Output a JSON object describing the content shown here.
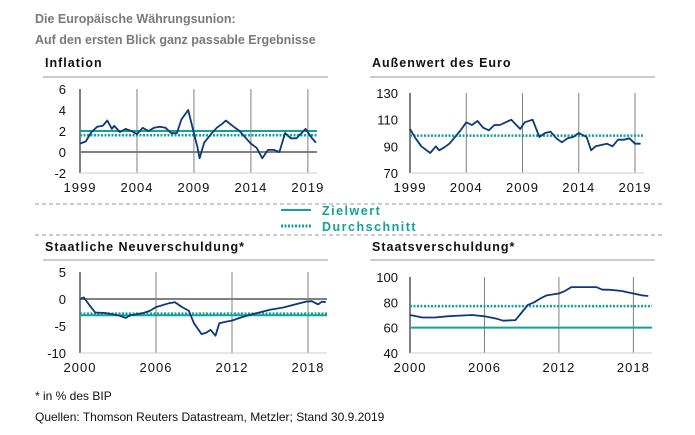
{
  "header": {
    "title": "Die Europäische Währungsunion:",
    "subtitle": "Auf den ersten Blick ganz passable Ergebnisse"
  },
  "legend": {
    "target_label": "Zielwert",
    "average_label": "Durchschnitt",
    "placement": "center"
  },
  "footer": {
    "note": "* in % des BIP",
    "source": "Quellen: Thomson Reuters Datastream, Metzler; Stand 30.9.2019"
  },
  "colors": {
    "series": "#0b3a78",
    "target": "#14a19a",
    "average": "#14a19a",
    "grid": "#808080"
  },
  "chart_data": [
    {
      "type": "line",
      "title": "Inflation",
      "ylim": [
        -2,
        6
      ],
      "yticks": [
        "6",
        "4",
        "2",
        "0",
        "-2"
      ],
      "ytick_values": [
        6,
        4,
        2,
        0,
        -2
      ],
      "xlim": [
        1999,
        2019.8
      ],
      "xticks": [
        "1999",
        "2004",
        "2009",
        "2014",
        "2019"
      ],
      "xtick_values": [
        1999,
        2004,
        2009,
        2014,
        2019
      ],
      "zero_line": 0,
      "target": 2,
      "average": 1.6,
      "series": [
        {
          "x": [
            1999,
            1999.5,
            2000,
            2000.5,
            2001,
            2001.4,
            2001.8,
            2002,
            2002.5,
            2003,
            2003.5,
            2004,
            2004.5,
            2005,
            2005.5,
            2006,
            2006.5,
            2007,
            2007.5,
            2007.9,
            2008.5,
            2008.9,
            2009.3,
            2009.5,
            2009.9,
            2010.5,
            2011,
            2011.5,
            2011.8,
            2012.5,
            2013,
            2013.5,
            2014,
            2014.5,
            2015,
            2015.5,
            2016,
            2016.5,
            2017,
            2017.5,
            2018,
            2018.8,
            2019.3,
            2019.7
          ],
          "y": [
            0.8,
            1.0,
            1.9,
            2.4,
            2.5,
            3.0,
            2.2,
            2.5,
            1.9,
            2.2,
            2.0,
            1.7,
            2.3,
            2.0,
            2.3,
            2.4,
            2.3,
            1.8,
            1.8,
            3.1,
            4.0,
            2.2,
            0.5,
            -0.6,
            0.9,
            1.7,
            2.3,
            2.7,
            3.0,
            2.4,
            2.0,
            1.4,
            0.8,
            0.4,
            -0.6,
            0.2,
            0.2,
            0.0,
            1.8,
            1.3,
            1.3,
            2.2,
            1.4,
            0.9
          ]
        }
      ]
    },
    {
      "type": "line",
      "title": "Außenwert des Euro",
      "ylim": [
        70,
        130
      ],
      "yticks": [
        "130",
        "110",
        "90",
        "70"
      ],
      "ytick_values": [
        130,
        110,
        90,
        70
      ],
      "xlim": [
        1999,
        2019.8
      ],
      "xticks": [
        "1999",
        "2004",
        "2009",
        "2014",
        "2019"
      ],
      "xtick_values": [
        1999,
        2004,
        2009,
        2014,
        2019
      ],
      "average": 98,
      "series": [
        {
          "x": [
            1999,
            1999.5,
            2000,
            2000.8,
            2001.3,
            2001.6,
            2002,
            2002.5,
            2003,
            2003.5,
            2004,
            2004.5,
            2005,
            2005.5,
            2006,
            2006.5,
            2007,
            2007.5,
            2008,
            2008.8,
            2009.2,
            2009.9,
            2010.5,
            2011,
            2011.5,
            2012,
            2012.5,
            2013,
            2013.5,
            2014,
            2014.7,
            2015.1,
            2015.5,
            2016,
            2016.5,
            2017,
            2017.5,
            2018,
            2018.5,
            2019,
            2019.5
          ],
          "y": [
            103,
            96,
            90,
            85,
            90,
            87,
            89,
            92,
            97,
            102,
            108,
            106,
            109,
            104,
            102,
            106,
            106,
            108,
            110,
            103,
            108,
            110,
            97,
            100,
            101,
            96,
            93,
            96,
            97,
            100,
            97,
            87,
            90,
            91,
            92,
            90,
            95,
            95,
            96,
            92,
            92
          ]
        }
      ]
    },
    {
      "type": "line",
      "title": "Staatliche Neuverschuldung*",
      "ylim": [
        -10,
        5
      ],
      "yticks": [
        "5",
        "0",
        "-5",
        "-10"
      ],
      "ytick_values": [
        5,
        0,
        -5,
        -10
      ],
      "xlim": [
        2000,
        2019.5
      ],
      "xticks": [
        "2000",
        "2006",
        "2012",
        "2018"
      ],
      "xtick_values": [
        2000,
        2006,
        2012,
        2018
      ],
      "zero_line": 0,
      "target": -3,
      "average": -2.7,
      "series": [
        {
          "x": [
            2000,
            2000.3,
            2000.7,
            2001.2,
            2002,
            2003,
            2003.6,
            2004,
            2005,
            2005.5,
            2006,
            2007,
            2007.5,
            2008,
            2008.6,
            2009,
            2009.6,
            2010,
            2010.3,
            2010.7,
            2011,
            2011.5,
            2012,
            2012.5,
            2013,
            2014,
            2015,
            2016,
            2017,
            2017.8,
            2018.3,
            2018.8,
            2019.1,
            2019.4
          ],
          "y": [
            0,
            0.3,
            -1,
            -2.5,
            -2.6,
            -3,
            -3.5,
            -3,
            -2.6,
            -2.2,
            -1.5,
            -0.8,
            -0.6,
            -1.4,
            -2.2,
            -4.5,
            -6.5,
            -6.2,
            -5.7,
            -6.8,
            -4.5,
            -4.2,
            -4.0,
            -3.6,
            -3.2,
            -2.6,
            -2.0,
            -1.6,
            -1.0,
            -0.5,
            -0.4,
            -1.0,
            -0.5,
            -0.6
          ]
        }
      ]
    },
    {
      "type": "line",
      "title": "Staatsverschuldung*",
      "ylim": [
        40,
        100
      ],
      "yticks": [
        "100",
        "80",
        "60",
        "40"
      ],
      "ytick_values": [
        100,
        80,
        60,
        40
      ],
      "xlim": [
        2000,
        2019.5
      ],
      "xticks": [
        "2000",
        "2006",
        "2012",
        "2018"
      ],
      "xtick_values": [
        2000,
        2006,
        2012,
        2018
      ],
      "target": 60,
      "average": 77,
      "series": [
        {
          "x": [
            2000,
            2001,
            2002,
            2003,
            2004,
            2005,
            2006,
            2007,
            2007.5,
            2008.5,
            2009,
            2009.5,
            2010,
            2010.5,
            2011,
            2012,
            2012.5,
            2013,
            2014,
            2015,
            2015.5,
            2016,
            2017,
            2018,
            2018.7,
            2019.2
          ],
          "y": [
            70,
            68,
            68,
            69,
            69.5,
            70,
            69,
            67,
            65.5,
            66,
            72,
            78,
            80,
            83,
            85.5,
            87,
            89,
            92,
            92,
            92,
            90,
            90,
            89,
            87,
            85.5,
            85
          ]
        }
      ]
    }
  ]
}
